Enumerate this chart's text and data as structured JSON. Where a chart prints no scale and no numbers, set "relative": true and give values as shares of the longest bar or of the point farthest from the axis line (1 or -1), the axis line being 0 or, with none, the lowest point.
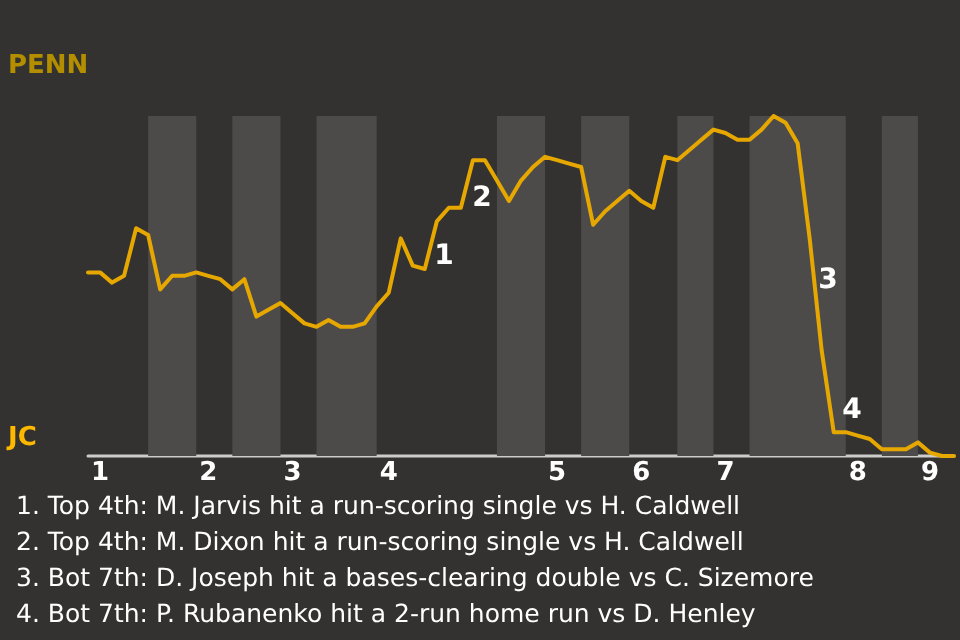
{
  "chart_data": {
    "type": "line",
    "relative": true,
    "categories": [
      null,
      "1",
      null,
      null,
      null,
      null,
      null,
      null,
      null,
      null,
      "2",
      null,
      null,
      null,
      null,
      null,
      null,
      "3",
      null,
      null,
      null,
      null,
      null,
      null,
      null,
      "4",
      null,
      null,
      null,
      null,
      null,
      null,
      null,
      null,
      null,
      null,
      null,
      null,
      null,
      "5",
      null,
      null,
      null,
      null,
      null,
      null,
      "6",
      null,
      null,
      null,
      null,
      null,
      null,
      "7",
      null,
      null,
      null,
      null,
      null,
      null,
      null,
      null,
      null,
      null,
      "8",
      null,
      null,
      null,
      null,
      null,
      "9",
      null,
      null
    ],
    "series": [
      {
        "color": "#e6a800",
        "values": [
          0.54,
          0.54,
          0.51,
          0.53,
          0.67,
          0.65,
          0.49,
          0.53,
          0.53,
          0.54,
          0.53,
          0.52,
          0.49,
          0.52,
          0.41,
          0.43,
          0.45,
          0.42,
          0.39,
          0.38,
          0.4,
          0.38,
          0.38,
          0.39,
          0.44,
          0.48,
          0.64,
          0.56,
          0.55,
          0.69,
          0.73,
          0.73,
          0.87,
          0.87,
          0.81,
          0.75,
          0.81,
          0.85,
          0.88,
          0.87,
          0.86,
          0.85,
          0.68,
          0.72,
          0.75,
          0.78,
          0.75,
          0.73,
          0.88,
          0.87,
          0.9,
          0.93,
          0.96,
          0.95,
          0.93,
          0.93,
          0.96,
          1,
          0.98,
          0.92,
          0.64,
          0.31,
          0.07,
          0.07,
          0.06,
          0.05,
          0.02,
          0.02,
          0.02,
          0.04,
          0.01,
          0,
          0
        ]
      }
    ],
    "marker": "none",
    "line_style": "solid",
    "annotations": [
      "PENN",
      "JC",
      "1",
      "2",
      "3",
      "4",
      "1. Top 4th: M. Jarvis hit a run-scoring single vs H. Caldwell",
      "2. Top 4th: M. Dixon hit a run-scoring single vs H. Caldwell",
      "3. Bot 7th: D. Joseph hit a bases-clearing double vs C. Sizemore",
      "4. Bot 7th: P. Rubanenko hit a 2-run home run vs D. Henley"
    ]
  }
}
